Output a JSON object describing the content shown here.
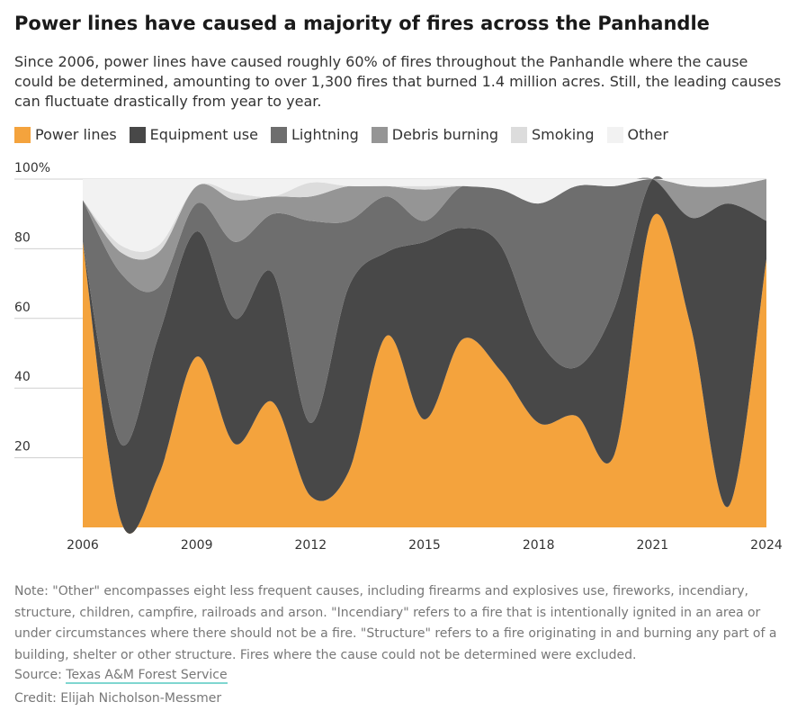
{
  "header": {
    "title": "Power lines have caused a majority of fires across the Panhandle",
    "subtitle": "Since 2006, power lines have caused roughly 60% of fires throughout the Panhandle where the cause could be determined, amounting to over 1,300 fires that burned 1.4 million acres. Still, the leading causes can fluctuate drastically from year to year."
  },
  "footer": {
    "note": "Note: \"Other\" encompasses eight less frequent causes, including firearms and explosives use, fireworks, incendiary, structure, children, campfire, railroads and arson. \"Incendiary\" refers to a fire that is intentionally ignited in an area or under circumstances where there should not be a fire. \"Structure\" refers to a fire originating in and burning any part of a building, shelter or other structure. Fires where the cause could not be determined were excluded.",
    "source_label": "Source: ",
    "source_link": "Texas A&M Forest Service",
    "credit": "Credit: Elijah Nicholson-Messmer"
  },
  "chart_data": {
    "type": "area",
    "stacked": true,
    "x": [
      2006,
      2007,
      2008,
      2009,
      2010,
      2011,
      2012,
      2013,
      2014,
      2015,
      2016,
      2017,
      2018,
      2019,
      2020,
      2021,
      2022,
      2023,
      2024
    ],
    "xticks": [
      "2006",
      "2009",
      "2012",
      "2015",
      "2018",
      "2021",
      "2024"
    ],
    "yticks": [
      "20",
      "40",
      "60",
      "80",
      "100%"
    ],
    "ylim": [
      0,
      100
    ],
    "grid": true,
    "legend_position": "top",
    "series": [
      {
        "name": "Power lines",
        "color": "#f4a33d",
        "values": [
          82,
          2,
          15,
          49,
          24,
          36,
          9,
          16,
          55,
          31,
          54,
          45,
          30,
          32,
          21,
          89,
          58,
          6,
          77
        ]
      },
      {
        "name": "Equipment use",
        "color": "#484848",
        "values": [
          0,
          22,
          40,
          36,
          36,
          37,
          21,
          53,
          24,
          51,
          32,
          36,
          24,
          14,
          42,
          11,
          31,
          87,
          11
        ]
      },
      {
        "name": "Lightning",
        "color": "#6e6e6e",
        "values": [
          12,
          49,
          14,
          8,
          22,
          17,
          58,
          19,
          16,
          6,
          12,
          16,
          39,
          52,
          35,
          0,
          0,
          0,
          0
        ]
      },
      {
        "name": "Debris burning",
        "color": "#959595",
        "values": [
          0,
          6,
          10,
          5,
          12,
          5,
          7,
          10,
          3,
          9,
          0,
          0,
          0,
          0,
          0,
          0,
          9,
          5,
          12
        ]
      },
      {
        "name": "Smoking",
        "color": "#dcdcdc",
        "values": [
          0,
          2,
          2,
          0,
          2,
          0,
          4,
          0,
          0,
          1,
          0,
          0,
          0,
          0,
          0,
          0,
          0,
          0,
          0
        ]
      },
      {
        "name": "Other",
        "color": "#f2f2f2",
        "values": [
          6,
          19,
          19,
          2,
          4,
          5,
          1,
          2,
          2,
          2,
          2,
          3,
          7,
          2,
          2,
          0,
          2,
          2,
          0
        ]
      }
    ]
  }
}
